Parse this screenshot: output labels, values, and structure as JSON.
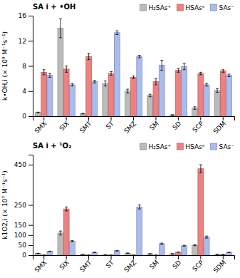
{
  "chart_data": [
    {
      "type": "bar",
      "title": "SA i + •OH",
      "y_label": "k•OH,i (× 10⁹ M⁻¹s⁻¹)",
      "categories": [
        "SMX",
        "SIX",
        "SMT",
        "ST",
        "SMZ",
        "SM",
        "SD",
        "SCP",
        "SDM"
      ],
      "series": [
        {
          "name": "H₂SAs⁺",
          "color": "#bbbbbb",
          "values": [
            0.6,
            14.0,
            0.4,
            5.2,
            4.0,
            3.3,
            0.2,
            1.3,
            4.1
          ],
          "errors": [
            0.05,
            1.5,
            0.05,
            0.4,
            0.3,
            0.2,
            0.05,
            0.2,
            0.3
          ]
        },
        {
          "name": "HSAsᵒ",
          "color": "#f08080",
          "values": [
            7.0,
            7.5,
            9.5,
            6.8,
            6.2,
            5.5,
            7.3,
            6.8,
            7.2
          ],
          "errors": [
            0.4,
            0.5,
            0.5,
            0.3,
            0.2,
            0.5,
            0.3,
            0.2,
            0.2
          ]
        },
        {
          "name": "SAs⁻",
          "color": "#aabbee",
          "values": [
            6.5,
            5.0,
            5.5,
            13.3,
            9.5,
            8.1,
            7.9,
            5.0,
            6.5
          ],
          "errors": [
            0.3,
            0.2,
            0.2,
            0.3,
            0.2,
            0.8,
            0.5,
            0.2,
            0.2
          ]
        }
      ],
      "ylim": [
        0,
        16
      ],
      "yticks": [
        0,
        4,
        8,
        12,
        16
      ],
      "grid": false,
      "legend": "upper right"
    },
    {
      "type": "bar",
      "title": "SA i + ¹O₂",
      "y_label": "k1O2,i (× 10⁷ M⁻¹s⁻¹)",
      "categories": [
        "SMX",
        "SIX",
        "SMT",
        "ST",
        "SMZ",
        "SM",
        "SD",
        "SCP",
        "SDM"
      ],
      "series": [
        {
          "name": "H₂SAs⁺",
          "color": "#bbbbbb",
          "values": [
            9.0,
            110.0,
            5.0,
            2.0,
            10.0,
            7.0,
            7.0,
            50.0,
            4.0
          ],
          "errors": [
            0.5,
            10.0,
            0.3,
            0.2,
            0.5,
            0.5,
            0.5,
            3.0,
            0.3
          ]
        },
        {
          "name": "HSAsᵒ",
          "color": "#f08080",
          "values": [
            0.5,
            230.0,
            0.5,
            0.5,
            0.5,
            0.5,
            15.0,
            430.0,
            3.0
          ],
          "errors": [
            0.0,
            10.0,
            0.0,
            0.0,
            0.0,
            0.0,
            1.0,
            20.0,
            0.3
          ]
        },
        {
          "name": "SAs⁻",
          "color": "#aabbee",
          "values": [
            19.0,
            70.0,
            14.0,
            22.0,
            240.0,
            57.0,
            47.0,
            90.0,
            14.0
          ],
          "errors": [
            1.0,
            3.0,
            1.0,
            1.5,
            10.0,
            3.0,
            2.0,
            5.0,
            1.0
          ]
        }
      ],
      "ylim": [
        0,
        500
      ],
      "yticks": [
        0,
        50,
        100,
        150,
        250,
        450
      ],
      "grid": false,
      "legend": "upper right"
    }
  ]
}
